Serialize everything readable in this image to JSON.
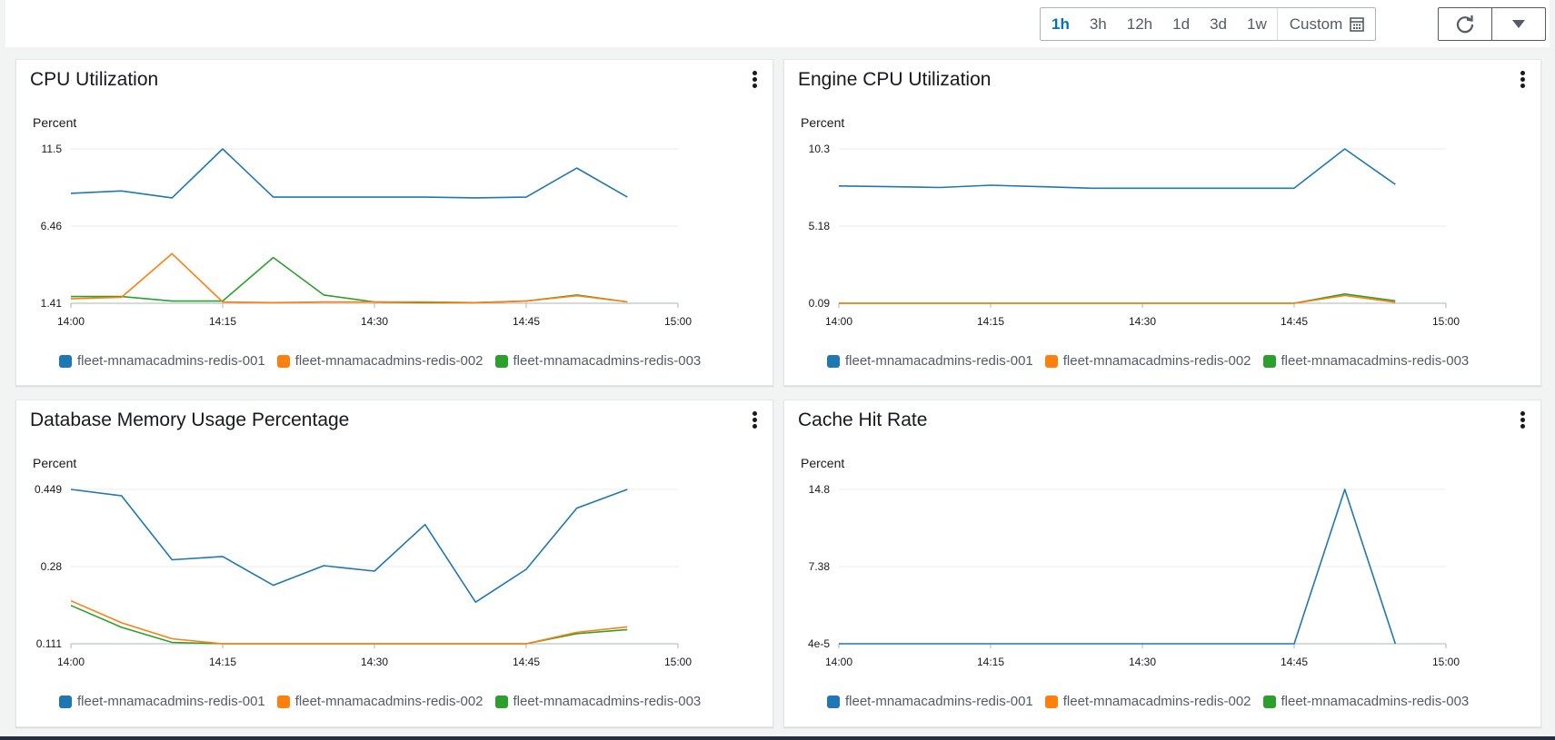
{
  "toolbar": {
    "ranges": [
      "1h",
      "3h",
      "12h",
      "1d",
      "3d",
      "1w"
    ],
    "active_range": "1h",
    "custom_label": "Custom"
  },
  "colors": {
    "series1": "#1f77b4",
    "series2": "#ff7f0e",
    "series3": "#2ca02c"
  },
  "legend": [
    "fleet-mnamacadmins-redis-001",
    "fleet-mnamacadmins-redis-002",
    "fleet-mnamacadmins-redis-003"
  ],
  "chart_data": [
    {
      "type": "line",
      "title": "CPU Utilization",
      "ylabel": "Percent",
      "ylim": [
        1.41,
        11.5
      ],
      "yticks": [
        "11.5",
        "6.46",
        "1.41"
      ],
      "xticks": [
        "14:00",
        "14:15",
        "14:30",
        "14:45",
        "15:00"
      ],
      "x_minutes": [
        0,
        5,
        10,
        15,
        20,
        25,
        30,
        35,
        40,
        45,
        50,
        55
      ],
      "series": [
        {
          "name": "fleet-mnamacadmins-redis-001",
          "values": [
            8.6,
            8.75,
            8.3,
            11.5,
            8.35,
            8.35,
            8.35,
            8.35,
            8.3,
            8.35,
            10.25,
            8.35
          ]
        },
        {
          "name": "fleet-mnamacadmins-redis-002",
          "values": [
            1.7,
            1.8,
            4.65,
            1.5,
            1.45,
            1.5,
            1.5,
            1.5,
            1.45,
            1.55,
            1.9,
            1.5
          ]
        },
        {
          "name": "fleet-mnamacadmins-redis-003",
          "values": [
            1.85,
            1.85,
            1.55,
            1.55,
            4.4,
            1.95,
            1.5,
            1.45,
            1.45,
            1.55,
            1.95,
            1.5
          ]
        }
      ]
    },
    {
      "type": "line",
      "title": "Engine CPU Utilization",
      "ylabel": "Percent",
      "ylim": [
        0.09,
        10.3
      ],
      "yticks": [
        "10.3",
        "5.18",
        "0.09"
      ],
      "xticks": [
        "14:00",
        "14:15",
        "14:30",
        "14:45",
        "15:00"
      ],
      "x_minutes": [
        0,
        5,
        10,
        15,
        20,
        25,
        30,
        35,
        40,
        45,
        50,
        55
      ],
      "series": [
        {
          "name": "fleet-mnamacadmins-redis-001",
          "values": [
            7.85,
            7.8,
            7.75,
            7.9,
            7.8,
            7.7,
            7.7,
            7.7,
            7.7,
            7.7,
            10.3,
            7.95
          ]
        },
        {
          "name": "fleet-mnamacadmins-redis-002",
          "values": [
            0.09,
            0.09,
            0.09,
            0.09,
            0.09,
            0.09,
            0.09,
            0.09,
            0.09,
            0.09,
            0.6,
            0.15
          ]
        },
        {
          "name": "fleet-mnamacadmins-redis-003",
          "values": [
            0.09,
            0.09,
            0.09,
            0.09,
            0.09,
            0.09,
            0.09,
            0.09,
            0.09,
            0.09,
            0.7,
            0.25
          ]
        }
      ]
    },
    {
      "type": "line",
      "title": "Database Memory Usage Percentage",
      "ylabel": "Percent",
      "ylim": [
        0.111,
        0.449
      ],
      "yticks": [
        "0.449",
        "0.28",
        "0.111"
      ],
      "xticks": [
        "14:00",
        "14:15",
        "14:30",
        "14:45",
        "15:00"
      ],
      "x_minutes": [
        0,
        5,
        10,
        15,
        20,
        25,
        30,
        35,
        40,
        45,
        50,
        55
      ],
      "series": [
        {
          "name": "fleet-mnamacadmins-redis-001",
          "values": [
            0.449,
            0.435,
            0.295,
            0.302,
            0.239,
            0.282,
            0.27,
            0.372,
            0.202,
            0.274,
            0.408,
            0.449
          ]
        },
        {
          "name": "fleet-mnamacadmins-redis-002",
          "values": [
            0.205,
            0.157,
            0.122,
            0.111,
            0.111,
            0.111,
            0.111,
            0.111,
            0.111,
            0.111,
            0.136,
            0.148
          ]
        },
        {
          "name": "fleet-mnamacadmins-redis-003",
          "values": [
            0.195,
            0.147,
            0.114,
            0.111,
            0.111,
            0.111,
            0.111,
            0.111,
            0.111,
            0.111,
            0.133,
            0.142
          ]
        }
      ]
    },
    {
      "type": "line",
      "title": "Cache Hit Rate",
      "ylabel": "Percent",
      "ylim": [
        4e-05,
        14.8
      ],
      "yticks": [
        "14.8",
        "7.38",
        "4e-5"
      ],
      "xticks": [
        "14:00",
        "14:15",
        "14:30",
        "14:45",
        "15:00"
      ],
      "x_minutes": [
        0,
        5,
        10,
        15,
        20,
        25,
        30,
        35,
        40,
        45,
        50,
        55
      ],
      "series": [
        {
          "name": "fleet-mnamacadmins-redis-001",
          "values": [
            4e-05,
            4e-05,
            4e-05,
            4e-05,
            4e-05,
            4e-05,
            4e-05,
            4e-05,
            4e-05,
            4e-05,
            14.8,
            4e-05
          ]
        }
      ]
    }
  ]
}
